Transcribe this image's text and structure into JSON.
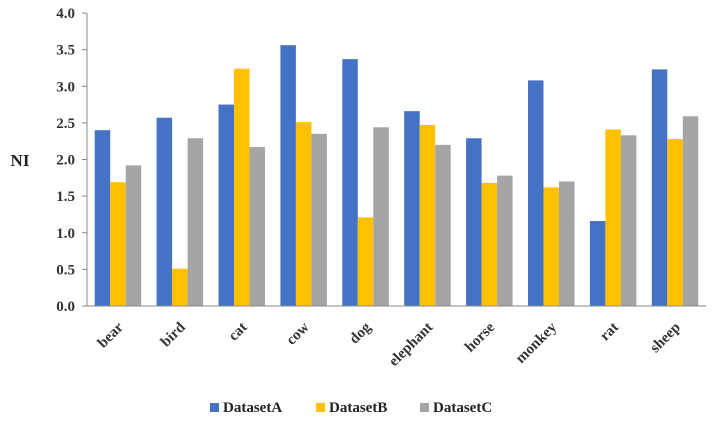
{
  "chart_data": {
    "type": "bar",
    "ylabel": "NI",
    "xlabel": "",
    "title": "",
    "ylim": [
      0,
      4
    ],
    "yticks": [
      "0.0",
      "0.5",
      "1.0",
      "1.5",
      "2.0",
      "2.5",
      "3.0",
      "3.5",
      "4.0"
    ],
    "categories": [
      "bear",
      "bird",
      "cat",
      "cow",
      "dog",
      "elephant",
      "horse",
      "monkey",
      "rat",
      "sheep"
    ],
    "series": [
      {
        "name": "DatasetA",
        "color": "#4472C4",
        "values": [
          2.4,
          2.57,
          2.75,
          3.56,
          3.37,
          2.66,
          2.29,
          3.08,
          1.16,
          3.23
        ]
      },
      {
        "name": "DatasetB",
        "color": "#FFC000",
        "values": [
          1.69,
          0.51,
          3.24,
          2.51,
          1.21,
          2.47,
          1.68,
          1.62,
          2.41,
          2.28
        ]
      },
      {
        "name": "DatasetC",
        "color": "#A5A5A5",
        "values": [
          1.92,
          2.29,
          2.17,
          2.35,
          2.44,
          2.2,
          1.78,
          1.7,
          2.33,
          2.59
        ]
      }
    ],
    "grid": false,
    "legend_position": "bottom"
  }
}
